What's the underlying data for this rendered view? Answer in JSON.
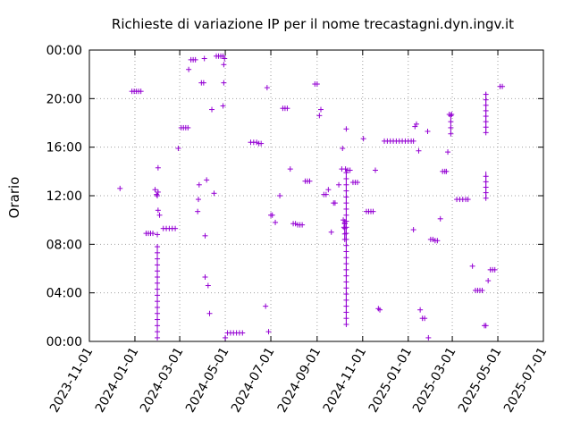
{
  "chart_data": {
    "type": "scatter",
    "title": "Richieste di variazione IP per il nome trecastagni.dyn.ingv.it",
    "xlabel": "",
    "ylabel": "Orario",
    "xlim": [
      "2023-11-01",
      "2025-07-01"
    ],
    "ylim": [
      0,
      24
    ],
    "x_ticks": [
      "2023-11-01",
      "2024-01-01",
      "2024-03-01",
      "2024-05-01",
      "2024-07-01",
      "2024-09-01",
      "2024-11-01",
      "2025-01-01",
      "2025-03-01",
      "2025-05-01",
      "2025-07-01"
    ],
    "y_ticks": [
      "00:00",
      "04:00",
      "08:00",
      "12:00",
      "16:00",
      "20:00",
      "00:00"
    ],
    "y_tick_values": [
      0,
      4,
      8,
      12,
      16,
      20,
      24
    ],
    "grid": true,
    "marker_color": "#9400d3",
    "points": [
      [
        "2023-12-12",
        12.6
      ],
      [
        "2023-12-28",
        20.6
      ],
      [
        "2023-12-31",
        20.6
      ],
      [
        "2024-01-03",
        20.6
      ],
      [
        "2024-01-06",
        20.6
      ],
      [
        "2024-01-09",
        20.6
      ],
      [
        "2024-01-16",
        8.9
      ],
      [
        "2024-01-19",
        8.9
      ],
      [
        "2024-01-22",
        8.9
      ],
      [
        "2024-01-25",
        8.9
      ],
      [
        "2024-01-28",
        12.5
      ],
      [
        "2024-01-30",
        12.1
      ],
      [
        "2024-01-31",
        12.0
      ],
      [
        "2024-02-01",
        12.3
      ],
      [
        "2024-02-01",
        14.3
      ],
      [
        "2024-02-01",
        10.8
      ],
      [
        "2024-02-03",
        10.4
      ],
      [
        "2024-01-31",
        8.8
      ],
      [
        "2024-02-08",
        9.3
      ],
      [
        "2024-02-12",
        9.3
      ],
      [
        "2024-02-16",
        9.3
      ],
      [
        "2024-02-20",
        9.3
      ],
      [
        "2024-02-24",
        9.3
      ],
      [
        "2024-02-28",
        15.9
      ],
      [
        "2024-03-03",
        17.6
      ],
      [
        "2024-03-06",
        17.6
      ],
      [
        "2024-03-09",
        17.6
      ],
      [
        "2024-03-12",
        17.6
      ],
      [
        "2024-03-13",
        22.4
      ],
      [
        "2024-03-16",
        23.2
      ],
      [
        "2024-03-19",
        23.2
      ],
      [
        "2024-03-22",
        23.2
      ],
      [
        "2024-03-25",
        10.7
      ],
      [
        "2024-03-26",
        11.7
      ],
      [
        "2024-03-27",
        12.9
      ],
      [
        "2024-03-30",
        21.3
      ],
      [
        "2024-04-02",
        21.3
      ],
      [
        "2024-04-03",
        23.3
      ],
      [
        "2024-04-04",
        8.7
      ],
      [
        "2024-04-04",
        5.3
      ],
      [
        "2024-04-06",
        13.3
      ],
      [
        "2024-04-08",
        4.6
      ],
      [
        "2024-04-10",
        2.3
      ],
      [
        "2024-04-13",
        19.1
      ],
      [
        "2024-04-16",
        12.2
      ],
      [
        "2024-04-19",
        23.5
      ],
      [
        "2024-04-22",
        23.5
      ],
      [
        "2024-04-25",
        23.5
      ],
      [
        "2024-04-28",
        23.5
      ],
      [
        "2024-04-28",
        19.4
      ],
      [
        "2024-04-29",
        21.3
      ],
      [
        "2024-04-29",
        22.8
      ],
      [
        "2024-04-30",
        23.3
      ],
      [
        "2024-05-01",
        0.3
      ],
      [
        "2024-05-04",
        0.7
      ],
      [
        "2024-05-08",
        0.7
      ],
      [
        "2024-05-12",
        0.7
      ],
      [
        "2024-05-16",
        0.7
      ],
      [
        "2024-05-20",
        0.7
      ],
      [
        "2024-05-24",
        0.7
      ],
      [
        "2024-06-04",
        16.4
      ],
      [
        "2024-06-08",
        16.4
      ],
      [
        "2024-06-12",
        16.4
      ],
      [
        "2024-06-15",
        16.3
      ],
      [
        "2024-06-18",
        16.3
      ],
      [
        "2024-06-24",
        2.9
      ],
      [
        "2024-06-26",
        20.9
      ],
      [
        "2024-06-28",
        0.8
      ],
      [
        "2024-07-01",
        10.4
      ],
      [
        "2024-07-03",
        10.4
      ],
      [
        "2024-07-07",
        9.8
      ],
      [
        "2024-07-13",
        12.0
      ],
      [
        "2024-07-17",
        19.2
      ],
      [
        "2024-07-20",
        19.2
      ],
      [
        "2024-07-23",
        19.2
      ],
      [
        "2024-07-27",
        14.2
      ],
      [
        "2024-07-31",
        9.7
      ],
      [
        "2024-08-03",
        9.7
      ],
      [
        "2024-08-06",
        9.6
      ],
      [
        "2024-08-09",
        9.6
      ],
      [
        "2024-08-12",
        9.6
      ],
      [
        "2024-08-16",
        13.2
      ],
      [
        "2024-08-19",
        13.2
      ],
      [
        "2024-08-22",
        13.2
      ],
      [
        "2024-08-29",
        21.2
      ],
      [
        "2024-09-01",
        21.2
      ],
      [
        "2024-09-04",
        18.6
      ],
      [
        "2024-09-06",
        19.1
      ],
      [
        "2024-09-10",
        12.1
      ],
      [
        "2024-09-13",
        12.1
      ],
      [
        "2024-09-16",
        12.5
      ],
      [
        "2024-09-20",
        9.0
      ],
      [
        "2024-09-23",
        11.4
      ],
      [
        "2024-09-25",
        11.4
      ],
      [
        "2024-09-30",
        12.9
      ],
      [
        "2024-10-04",
        14.2
      ],
      [
        "2024-10-05",
        15.9
      ],
      [
        "2024-10-06",
        10.0
      ],
      [
        "2024-10-07",
        9.4
      ],
      [
        "2024-10-08",
        9.7
      ],
      [
        "2024-10-09",
        14.2
      ],
      [
        "2024-10-10",
        17.5
      ],
      [
        "2024-10-12",
        14.1
      ],
      [
        "2024-10-15",
        14.1
      ],
      [
        "2024-10-19",
        13.1
      ],
      [
        "2024-10-22",
        13.1
      ],
      [
        "2024-10-25",
        13.1
      ],
      [
        "2024-11-02",
        16.7
      ],
      [
        "2024-11-06",
        10.7
      ],
      [
        "2024-11-09",
        10.7
      ],
      [
        "2024-11-12",
        10.7
      ],
      [
        "2024-11-15",
        10.7
      ],
      [
        "2024-11-18",
        14.1
      ],
      [
        "2024-11-22",
        2.7
      ],
      [
        "2024-11-24",
        2.6
      ],
      [
        "2024-11-30",
        16.5
      ],
      [
        "2024-12-04",
        16.5
      ],
      [
        "2024-12-08",
        16.5
      ],
      [
        "2024-12-12",
        16.5
      ],
      [
        "2024-12-16",
        16.5
      ],
      [
        "2024-12-20",
        16.5
      ],
      [
        "2024-12-24",
        16.5
      ],
      [
        "2024-12-28",
        16.5
      ],
      [
        "2025-01-01",
        16.5
      ],
      [
        "2025-01-05",
        16.5
      ],
      [
        "2025-01-08",
        16.5
      ],
      [
        "2025-01-08",
        9.2
      ],
      [
        "2025-01-10",
        17.7
      ],
      [
        "2025-01-12",
        17.9
      ],
      [
        "2025-01-15",
        15.7
      ],
      [
        "2025-01-17",
        2.6
      ],
      [
        "2025-01-20",
        1.9
      ],
      [
        "2025-01-23",
        1.9
      ],
      [
        "2025-01-27",
        17.3
      ],
      [
        "2025-01-28",
        0.3
      ],
      [
        "2025-01-31",
        8.4
      ],
      [
        "2025-02-03",
        8.4
      ],
      [
        "2025-02-06",
        8.3
      ],
      [
        "2025-02-09",
        8.3
      ],
      [
        "2025-02-13",
        10.1
      ],
      [
        "2025-02-16",
        14.0
      ],
      [
        "2025-02-19",
        14.0
      ],
      [
        "2025-02-21",
        14.0
      ],
      [
        "2025-02-23",
        15.6
      ],
      [
        "2025-02-25",
        18.7
      ],
      [
        "2025-02-28",
        18.7
      ],
      [
        "2025-03-07",
        11.7
      ],
      [
        "2025-03-11",
        11.7
      ],
      [
        "2025-03-15",
        11.7
      ],
      [
        "2025-03-19",
        11.7
      ],
      [
        "2025-03-22",
        11.7
      ],
      [
        "2025-03-28",
        6.2
      ],
      [
        "2025-04-01",
        4.2
      ],
      [
        "2025-04-04",
        4.2
      ],
      [
        "2025-04-07",
        4.2
      ],
      [
        "2025-04-10",
        4.2
      ],
      [
        "2025-04-13",
        1.3
      ],
      [
        "2025-04-15",
        1.3
      ],
      [
        "2025-04-18",
        5.0
      ],
      [
        "2025-04-21",
        5.9
      ],
      [
        "2025-04-24",
        5.9
      ],
      [
        "2025-04-27",
        5.9
      ],
      [
        "2025-05-04",
        21.0
      ],
      [
        "2025-05-07",
        21.0
      ]
    ],
    "vertical_runs": [
      {
        "x": "2024-01-31",
        "y_from": 0.3,
        "y_to": 8.0,
        "step": 0.5
      },
      {
        "x": "2024-10-10",
        "y_from": 1.4,
        "y_to": 14.2,
        "step": 0.5
      },
      {
        "x": "2024-10-08",
        "y_from": 8.4,
        "y_to": 10.1,
        "step": 0.45
      },
      {
        "x": "2025-02-27",
        "y_from": 17.1,
        "y_to": 18.7,
        "step": 0.5
      },
      {
        "x": "2025-04-15",
        "y_from": 17.2,
        "y_to": 20.5,
        "step": 0.45
      },
      {
        "x": "2025-04-15",
        "y_from": 11.8,
        "y_to": 14.0,
        "step": 0.45
      }
    ]
  }
}
